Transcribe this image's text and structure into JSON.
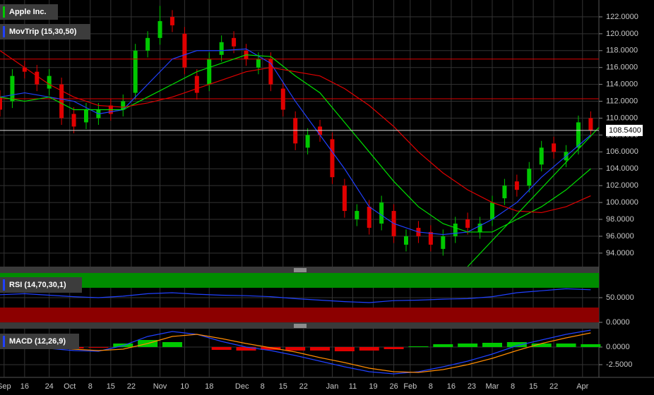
{
  "chart_data": [
    {
      "type": "candlestick",
      "title": "Apple Inc.",
      "xlim": [
        0,
        146
      ],
      "xticks": [
        {
          "value": 1,
          "label": "Sep"
        },
        {
          "value": 6,
          "label": "16"
        },
        {
          "value": 12,
          "label": "24"
        },
        {
          "value": 17,
          "label": "Oct"
        },
        {
          "value": 22,
          "label": "8"
        },
        {
          "value": 27,
          "label": "15"
        },
        {
          "value": 32,
          "label": "22"
        },
        {
          "value": 39,
          "label": "Nov"
        },
        {
          "value": 45,
          "label": "10"
        },
        {
          "value": 51,
          "label": "18"
        },
        {
          "value": 59,
          "label": "Dec"
        },
        {
          "value": 64,
          "label": "8"
        },
        {
          "value": 69,
          "label": "15"
        },
        {
          "value": 74,
          "label": "22"
        },
        {
          "value": 81,
          "label": "Jan"
        },
        {
          "value": 86,
          "label": "11"
        },
        {
          "value": 91,
          "label": "19"
        },
        {
          "value": 96,
          "label": "26"
        },
        {
          "value": 100,
          "label": "Feb"
        },
        {
          "value": 105,
          "label": "8"
        },
        {
          "value": 110,
          "label": "16"
        },
        {
          "value": 115,
          "label": "23"
        },
        {
          "value": 120,
          "label": "Mar"
        },
        {
          "value": 125,
          "label": "8"
        },
        {
          "value": 130,
          "label": "15"
        },
        {
          "value": 135,
          "label": "22"
        },
        {
          "value": 142,
          "label": "Apr"
        }
      ],
      "ylim": [
        92.4,
        124
      ],
      "yticks": [
        {
          "value": 94,
          "label": "94.0000"
        },
        {
          "value": 96,
          "label": "96.0000"
        },
        {
          "value": 98,
          "label": "98.0000"
        },
        {
          "value": 100,
          "label": "100.0000"
        },
        {
          "value": 102,
          "label": "102.0000"
        },
        {
          "value": 104,
          "label": "104.0000"
        },
        {
          "value": 106,
          "label": "106.0000"
        },
        {
          "value": 108,
          "label": "108.0000"
        },
        {
          "value": 110,
          "label": "110.0000"
        },
        {
          "value": 112,
          "label": "112.0000"
        },
        {
          "value": 114,
          "label": "114.0000"
        },
        {
          "value": 116,
          "label": "116.0000"
        },
        {
          "value": 118,
          "label": "118.0000"
        },
        {
          "value": 120,
          "label": "120.0000"
        },
        {
          "value": 122,
          "label": "122.0000"
        }
      ],
      "grid": true,
      "up_color": "#00c800",
      "down_color": "#e00000",
      "legend_color": "#00c800",
      "x": [
        0,
        3,
        6,
        9,
        12,
        15,
        18,
        21,
        24,
        27,
        30,
        33,
        36,
        39,
        42,
        45,
        48,
        51,
        54,
        57,
        60,
        63,
        66,
        69,
        72,
        75,
        78,
        81,
        84,
        87,
        90,
        93,
        96,
        99,
        102,
        105,
        108,
        111,
        114,
        117,
        120,
        123,
        126,
        129,
        132,
        135,
        138,
        141,
        144
      ],
      "open": [
        112.5,
        112,
        116,
        115.5,
        113.5,
        114,
        110.5,
        109.5,
        110,
        111.5,
        111,
        113,
        118,
        119.5,
        122,
        120,
        115,
        114,
        117.5,
        119.5,
        118,
        116,
        117,
        113.5,
        110,
        106.5,
        109,
        107.5,
        102,
        98,
        99.5,
        97.5,
        99,
        95,
        97,
        96.5,
        94.5,
        96,
        98,
        96.5,
        98,
        100.5,
        102.5,
        102,
        104.5,
        107,
        105,
        106.5,
        110
      ],
      "high": [
        113.3,
        115.8,
        116.8,
        116.3,
        115.8,
        114.8,
        111.3,
        111.8,
        111.8,
        112.3,
        112.8,
        118.8,
        120.3,
        123.3,
        122.8,
        120.8,
        115.8,
        117.8,
        119.8,
        120.3,
        118.8,
        117.8,
        117.8,
        114.3,
        110.8,
        108.8,
        109.8,
        108.3,
        102.8,
        99.8,
        100.3,
        100.8,
        99.8,
        96.8,
        97.8,
        97.3,
        96.8,
        98.3,
        98.8,
        98.3,
        100.8,
        102.8,
        103.3,
        104.8,
        107.3,
        107.8,
        106.8,
        110.3,
        110.8
      ],
      "low": [
        110.2,
        111.2,
        114.7,
        113.2,
        112.7,
        109.2,
        108.2,
        108.7,
        109.2,
        109.7,
        110.2,
        112.2,
        117.2,
        118.7,
        120.2,
        115.2,
        112.2,
        113.2,
        116.7,
        117.7,
        116.2,
        115.2,
        113.2,
        110.2,
        106.2,
        105.7,
        107.2,
        102.2,
        98.2,
        97.2,
        96.2,
        96.7,
        95.2,
        94.2,
        95.2,
        94.2,
        93.7,
        95.2,
        96.2,
        95.7,
        97.2,
        99.7,
        100.7,
        101.2,
        103.7,
        105.2,
        104.2,
        105.7,
        107.74
      ],
      "close": [
        111,
        115,
        115.5,
        114,
        115,
        110,
        109,
        111,
        111,
        110.5,
        112,
        118,
        119.5,
        121.5,
        121,
        116,
        113,
        117,
        119,
        118.5,
        117,
        117,
        114,
        111,
        107,
        108,
        108,
        103,
        99,
        99,
        97,
        100,
        96,
        96,
        96,
        95,
        96,
        97.5,
        97,
        97.5,
        100,
        102,
        101.5,
        104,
        106.5,
        106,
        106,
        109.5,
        108.54
      ],
      "overlay": {
        "title": "MovTrip (15,30,50)",
        "legend_color": "#2040ff",
        "x": [
          0,
          6,
          12,
          18,
          24,
          30,
          36,
          42,
          48,
          54,
          60,
          66,
          72,
          78,
          84,
          90,
          96,
          102,
          108,
          114,
          120,
          126,
          132,
          138,
          144
        ],
        "series": [
          {
            "color": "#2040ff",
            "values": [
              112.5,
              113,
              112.5,
              112,
              110.5,
              111,
              114,
              117,
              118,
              118,
              118.2,
              116.5,
              112,
              108,
              104,
              99.5,
              97.5,
              96.5,
              96.2,
              96.5,
              98,
              100,
              103,
              105.5,
              108
            ]
          },
          {
            "color": "#00e000",
            "values": [
              112.5,
              112,
              112.5,
              111,
              111,
              111,
              112.5,
              114,
              115.5,
              116.5,
              117.5,
              117.3,
              115,
              113,
              109.5,
              106,
              102.5,
              99.5,
              97.5,
              96.5,
              96.5,
              98,
              99.5,
              101.5,
              104
            ]
          },
          {
            "color": "#e00000",
            "values": [
              118,
              116,
              114,
              112.5,
              111.5,
              111.3,
              111.8,
              112.5,
              113.5,
              114.5,
              115.5,
              116,
              115.5,
              115,
              113.5,
              111.5,
              109,
              106,
              103.5,
              101.5,
              100,
              99,
              98.8,
              99.5,
              100.8
            ]
          }
        ]
      },
      "hlines": [
        {
          "value": 112.3,
          "color": "#e00000"
        },
        {
          "value": 117,
          "color": "#e00000"
        }
      ],
      "trendline": {
        "x": [
          114,
          146
        ],
        "y": [
          92.4,
          108.9
        ],
        "color": "#00e000"
      },
      "last_price": {
        "value": 108.54,
        "label": "108.5400"
      }
    },
    {
      "type": "rsi",
      "title": "RSI (14,70,30,1)",
      "legend_color": "#2040ff",
      "ylim": [
        0,
        100
      ],
      "yticks": [
        {
          "value": 0,
          "label": "0.0000"
        },
        {
          "value": 50,
          "label": "50.0000"
        }
      ],
      "grid": true,
      "bands": [
        {
          "from": 70,
          "to": 100,
          "color": "#008c00"
        },
        {
          "from": 0,
          "to": 30,
          "color": "#8c0000"
        }
      ],
      "x": [
        0,
        6,
        12,
        18,
        24,
        30,
        36,
        42,
        48,
        54,
        60,
        66,
        72,
        78,
        84,
        90,
        96,
        102,
        108,
        114,
        120,
        126,
        132,
        138,
        144
      ],
      "series": [
        {
          "color": "#2040ff",
          "values": [
            56,
            58,
            55,
            52,
            50,
            53,
            58,
            60,
            57,
            55,
            54,
            52,
            48,
            45,
            42,
            40,
            44,
            45,
            47,
            48,
            52,
            60,
            64,
            68,
            66
          ]
        }
      ]
    },
    {
      "type": "macd",
      "title": "MACD (12,26,9)",
      "legend_color": "#2040ff",
      "ylim": [
        -4.3,
        2.6
      ],
      "yticks": [
        {
          "value": -2.5,
          "label": "-2.5000"
        },
        {
          "value": 0,
          "label": "0.0000"
        }
      ],
      "grid": true,
      "x": [
        0,
        6,
        12,
        18,
        24,
        30,
        36,
        42,
        48,
        54,
        60,
        66,
        72,
        78,
        84,
        90,
        96,
        102,
        108,
        114,
        120,
        126,
        132,
        138,
        144
      ],
      "series": [
        {
          "color": "#2040ff",
          "values": [
            0.3,
            0.3,
            -0.2,
            -0.5,
            -0.6,
            0.2,
            1.5,
            2.2,
            1.8,
            0.8,
            0,
            -0.5,
            -1.2,
            -2,
            -2.8,
            -3.5,
            -3.8,
            -3.5,
            -2.8,
            -2,
            -1,
            0.2,
            1,
            1.8,
            2.4
          ]
        },
        {
          "color": "#ff8c00",
          "values": [
            0.5,
            0.3,
            0,
            -0.3,
            -0.5,
            -0.3,
            0.5,
            1.5,
            1.8,
            1.2,
            0.5,
            -0.1,
            -0.7,
            -1.5,
            -2.2,
            -3,
            -3.5,
            -3.6,
            -3.2,
            -2.5,
            -1.6,
            -0.5,
            0.5,
            1.3,
            2
          ]
        }
      ],
      "histogram": {
        "up_color": "#00c800",
        "down_color": "#e00000",
        "values": [
          -0.2,
          0,
          -0.2,
          -0.2,
          -0.1,
          0.5,
          1,
          0.7,
          0,
          -0.4,
          -0.5,
          -0.4,
          -0.5,
          -0.5,
          -0.6,
          -0.5,
          -0.3,
          0.1,
          0.4,
          0.5,
          0.6,
          0.7,
          0.5,
          0.5,
          0.4
        ]
      }
    }
  ]
}
